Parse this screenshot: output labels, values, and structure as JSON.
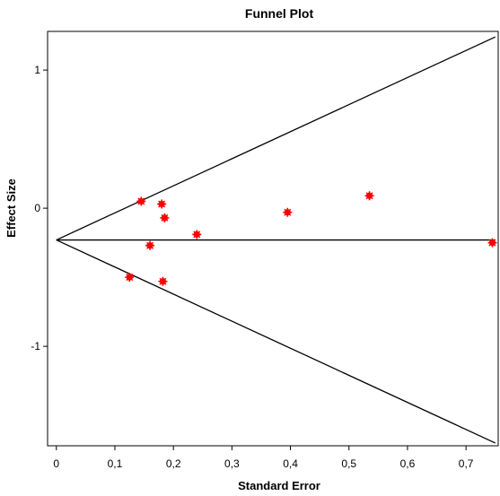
{
  "chart_data": {
    "type": "scatter",
    "title": "Funnel Plot",
    "xlabel": "Standard Error",
    "ylabel": "Effect Size",
    "xlim": [
      -0.015,
      0.755
    ],
    "ylim": [
      -1.72,
      1.28
    ],
    "x_ticks": [
      {
        "value": 0,
        "label": "0"
      },
      {
        "value": 0.1,
        "label": "0,1"
      },
      {
        "value": 0.2,
        "label": "0,2"
      },
      {
        "value": 0.3,
        "label": "0,3"
      },
      {
        "value": 0.4,
        "label": "0,4"
      },
      {
        "value": 0.5,
        "label": "0,5"
      },
      {
        "value": 0.6,
        "label": "0,6"
      },
      {
        "value": 0.7,
        "label": "0,7"
      }
    ],
    "y_ticks": [
      {
        "value": 1,
        "label": "1"
      },
      {
        "value": 0,
        "label": "0"
      },
      {
        "value": -1,
        "label": "-1"
      }
    ],
    "pooled_effect": -0.23,
    "funnel_lines": [
      {
        "name": "upper-limit",
        "x": [
          0,
          0.75
        ],
        "y": [
          -0.23,
          1.24
        ]
      },
      {
        "name": "pooled-estimate",
        "x": [
          0,
          0.75
        ],
        "y": [
          -0.23,
          -0.23
        ]
      },
      {
        "name": "lower-limit",
        "x": [
          0,
          0.75
        ],
        "y": [
          -0.23,
          -1.7
        ]
      }
    ],
    "points": [
      {
        "x": 0.125,
        "y": -0.5
      },
      {
        "x": 0.145,
        "y": 0.05
      },
      {
        "x": 0.16,
        "y": -0.27
      },
      {
        "x": 0.18,
        "y": 0.03
      },
      {
        "x": 0.185,
        "y": -0.07
      },
      {
        "x": 0.182,
        "y": -0.53
      },
      {
        "x": 0.24,
        "y": -0.19
      },
      {
        "x": 0.395,
        "y": -0.03
      },
      {
        "x": 0.535,
        "y": 0.09
      },
      {
        "x": 0.745,
        "y": -0.25
      }
    ],
    "point_color": "#ff0000",
    "line_color": "#000000",
    "grid": false,
    "legend": "none"
  }
}
